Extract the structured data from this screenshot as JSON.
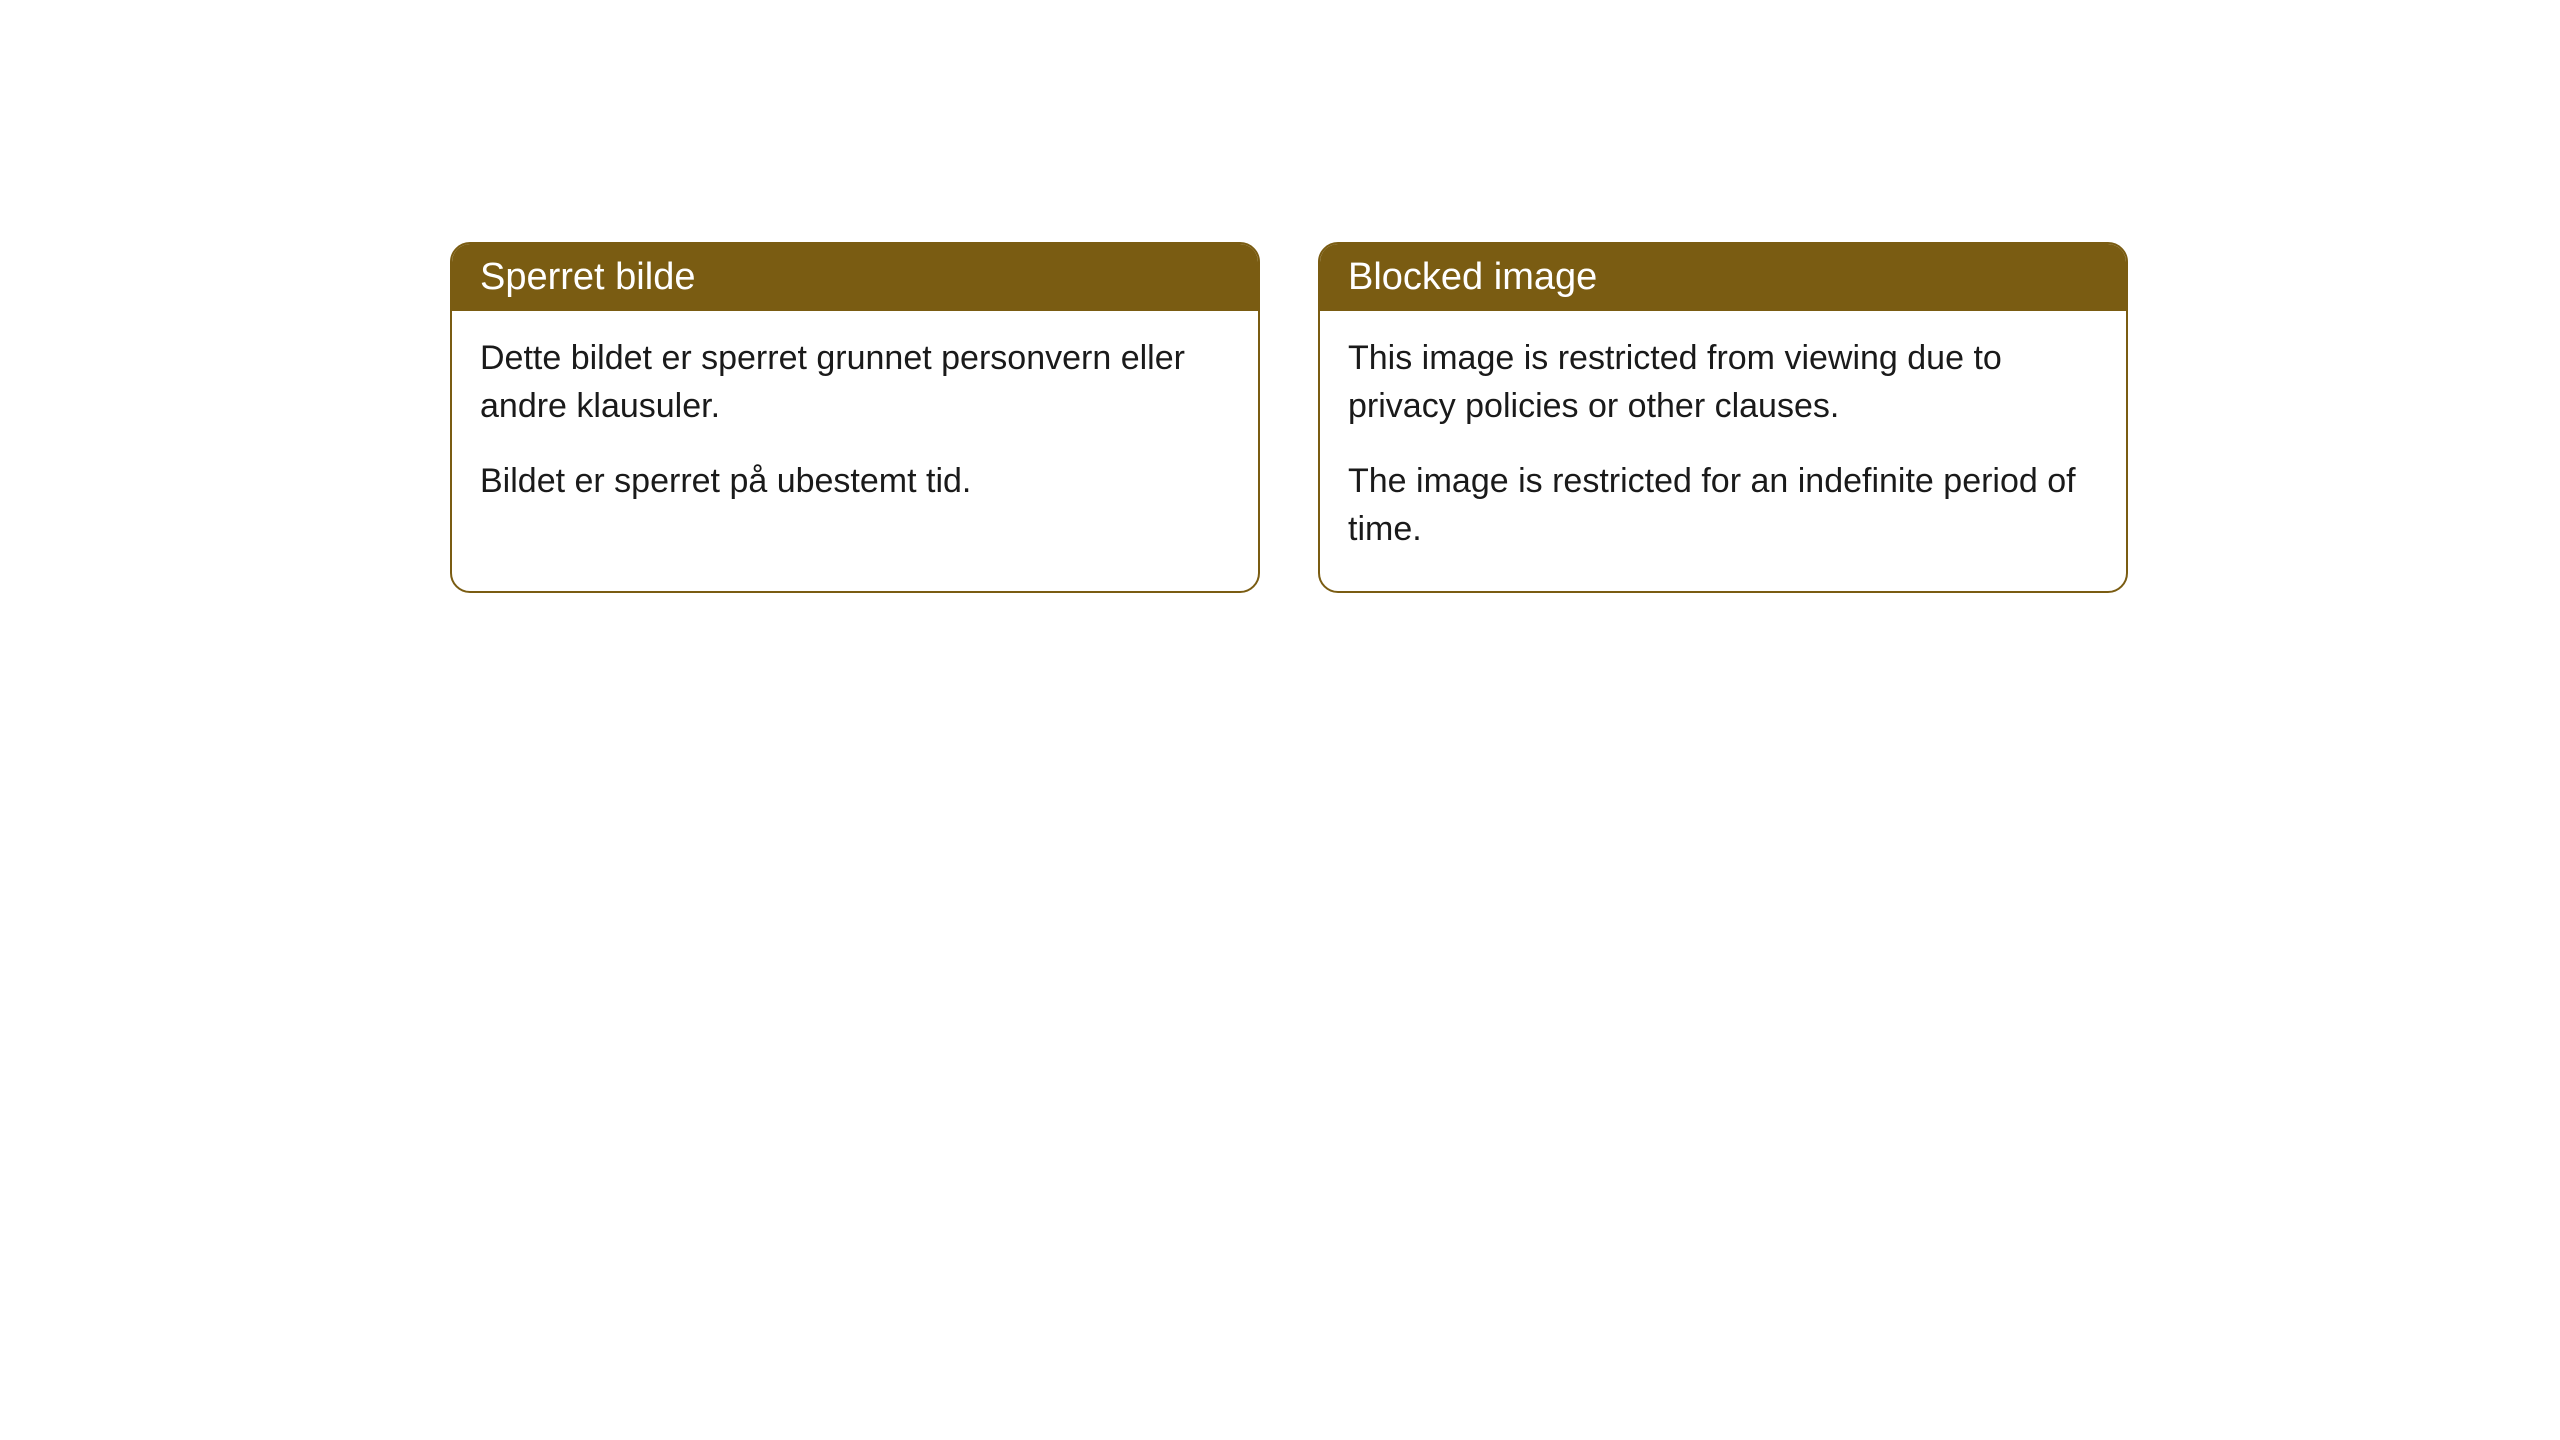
{
  "cards": [
    {
      "title": "Sperret bilde",
      "paragraph1": "Dette bildet er sperret grunnet personvern eller andre klausuler.",
      "paragraph2": "Bildet er sperret på ubestemt tid."
    },
    {
      "title": "Blocked image",
      "paragraph1": "This image is restricted from viewing due to privacy policies or other clauses.",
      "paragraph2": "The image is restricted for an indefinite period of time."
    }
  ],
  "colors": {
    "header_bg": "#7a5c12",
    "header_text": "#ffffff",
    "border": "#7a5c12",
    "body_text": "#1a1a1a",
    "card_bg": "#ffffff",
    "page_bg": "#ffffff"
  }
}
